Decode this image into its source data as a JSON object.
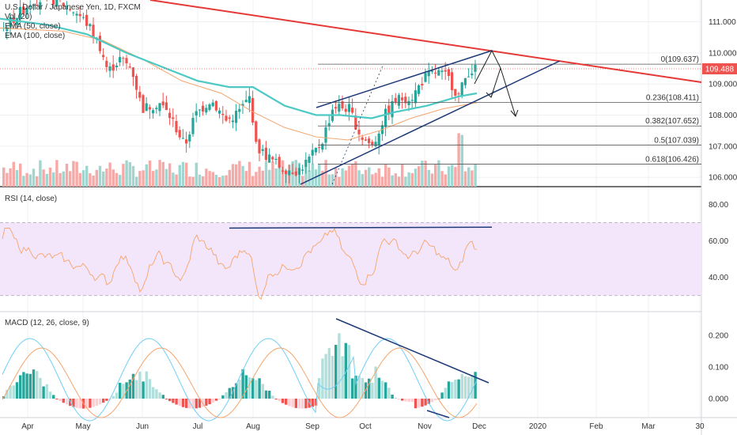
{
  "chart_data": [
    {
      "type": "candlestick",
      "symbol_line": "U.S. Dollar / Japanese Yen, 1D, FXCM",
      "indicators": [
        "Vol (20)",
        "EMA (50, close)",
        "EMA (100, close)"
      ],
      "x_labels": [
        "Apr",
        "May",
        "Jun",
        "Jul",
        "Aug",
        "Sep",
        "Oct",
        "Nov",
        "Dec",
        "2020",
        "Feb",
        "Mar",
        "30"
      ],
      "y_ticks": [
        "111.000",
        "110.000",
        "109.000",
        "108.000",
        "107.000",
        "106.000"
      ],
      "last_price": "109.488",
      "fib_levels": [
        {
          "label": "0(109.637)",
          "value": 109.637
        },
        {
          "label": "0.236(108.411)",
          "value": 108.411
        },
        {
          "label": "0.382(107.652)",
          "value": 107.652
        },
        {
          "label": "0.5(107.039)",
          "value": 107.039
        },
        {
          "label": "0.618(106.426)",
          "value": 106.426
        }
      ],
      "ylim": [
        105.7,
        111.7
      ],
      "colors": {
        "up": "#26a69a",
        "down": "#ef5350",
        "ema50": "#4dc9c4",
        "ema100": "#f5a46b",
        "trend": "#e53935",
        "channel": "#1e3a78",
        "price": "#ef5350"
      }
    },
    {
      "type": "line",
      "title": "RSI (14, close)",
      "y_ticks": [
        "80.00",
        "60.00",
        "40.00"
      ],
      "ylim": [
        22,
        88
      ],
      "band": [
        30,
        70
      ],
      "colors": {
        "line": "#f5a46b",
        "band": "#f3e6fb",
        "level": "#1e3a78"
      }
    },
    {
      "type": "histogram",
      "title": "MACD (12, 26, close, 9)",
      "y_ticks": [
        "0.200",
        "0.100",
        "0.000"
      ],
      "ylim": [
        -0.06,
        0.27
      ],
      "colors": {
        "hist_up": "#26a69a",
        "hist_up_fade": "#b2dfdb",
        "hist_down": "#ef5350",
        "hist_down_fade": "#ffcdd2",
        "macd": "#6ecff5",
        "signal": "#f5a46b",
        "trend": "#1e3a78"
      }
    }
  ]
}
